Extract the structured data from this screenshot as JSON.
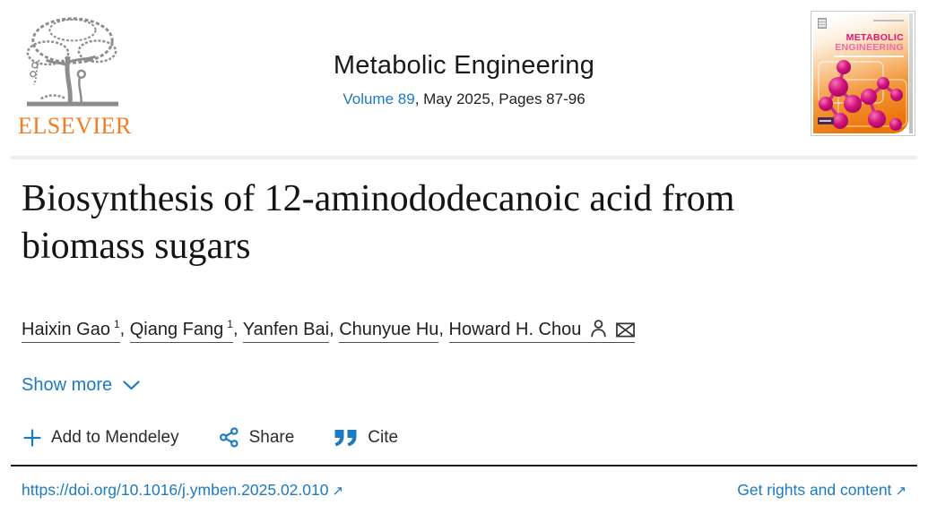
{
  "header": {
    "elsevier_wordmark": "ELSEVIER",
    "journal_title": "Metabolic Engineering",
    "issue": {
      "volume_link": "Volume 89",
      "rest": ", May 2025, Pages 87-96"
    },
    "cover": {
      "title_line1": "METABOLIC",
      "title_line2": "ENGINEERING"
    }
  },
  "article": {
    "title": "Biosynthesis of 12-aminododecanoic acid from biomass sugars",
    "authors": [
      {
        "name": "Haixin Gao",
        "sup": "1",
        "corresponding": false
      },
      {
        "name": "Qiang Fang",
        "sup": "1",
        "corresponding": false
      },
      {
        "name": "Yanfen Bai",
        "sup": "",
        "corresponding": false
      },
      {
        "name": "Chunyue Hu",
        "sup": "",
        "corresponding": false
      },
      {
        "name": "Howard H. Chou",
        "sup": "",
        "corresponding": true
      }
    ],
    "author_separator": ", ",
    "show_more_label": "Show more",
    "actions": {
      "mendeley": "Add to Mendeley",
      "share": "Share",
      "cite": "Cite"
    }
  },
  "footer": {
    "doi_link": "https://doi.org/10.1016/j.ymben.2025.02.010",
    "rights_link": "Get rights and content",
    "external_arrow": "↗"
  },
  "colors": {
    "link_blue": "#1b7ac2",
    "elsevier_orange": "#f47b20",
    "cover_magenta": "#e0157a",
    "divider_light": "#ededed",
    "divider_dark": "#191919"
  }
}
